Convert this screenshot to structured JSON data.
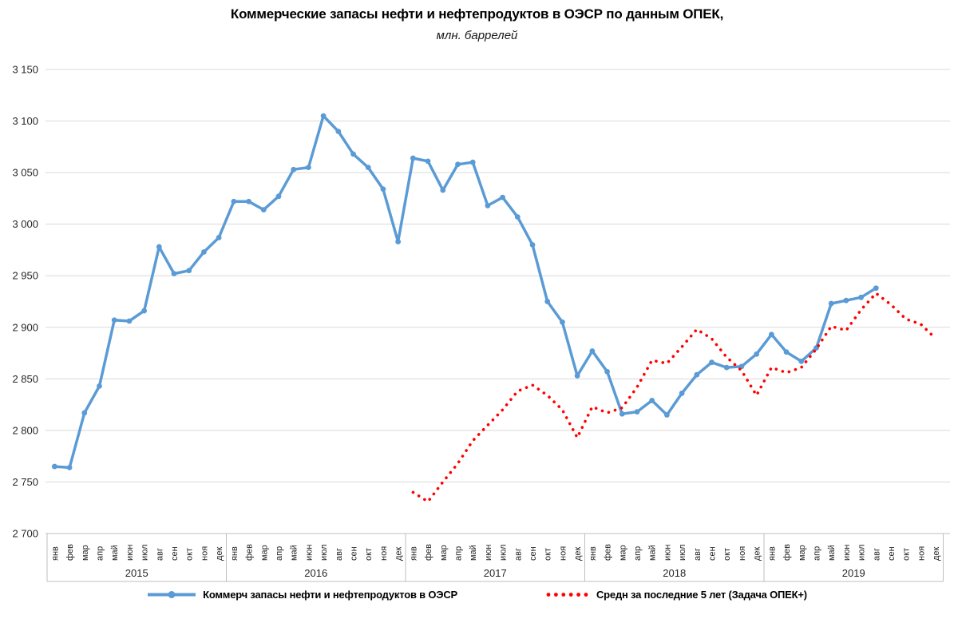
{
  "title": "Коммерческие запасы нефти и нефтепродуктов в ОЭСР по данным ОПЕК,",
  "subtitle": "млн. баррелей",
  "legend": [
    {
      "label": "Коммерч запасы нефти и нефтепродуктов в ОЭСР",
      "color": "#5B9BD5",
      "style": "line-marker"
    },
    {
      "label": "Средн за последние 5 лет (Задача ОПЕК+)",
      "color": "#FF0000",
      "style": "dotted"
    }
  ],
  "colors": {
    "series_blue": "#5B9BD5",
    "series_red": "#FF0000",
    "gridline": "#D9D9D9",
    "axis_line": "#BFBFBF",
    "axis_text": "#262626",
    "background": "#FFFFFF"
  },
  "chart_data": {
    "type": "line",
    "title": "Коммерческие запасы нефти и нефтепродуктов в ОЭСР по данным ОПЕК,",
    "subtitle": "млн. баррелей",
    "units": "млн. баррелей",
    "grid": "horizontal",
    "legend_position": "bottom",
    "ylim": [
      2700,
      3150
    ],
    "ytick_step": 50,
    "ytick_labels": [
      "2 700",
      "2 750",
      "2 800",
      "2 850",
      "2 900",
      "2 950",
      "3 000",
      "3 050",
      "3 100",
      "3 150"
    ],
    "x_month_labels": [
      "янв",
      "фев",
      "мар",
      "апр",
      "май",
      "июн",
      "июл",
      "авг",
      "сен",
      "окт",
      "ноя",
      "дек"
    ],
    "x_years": [
      "2015",
      "2016",
      "2017",
      "2018",
      "2019"
    ],
    "series": [
      {
        "name": "Коммерч запасы нефти и нефтепродуктов в ОЭСР",
        "color": "#5B9BD5",
        "line_style": "solid",
        "markers": true,
        "start_year": "2015",
        "start_month": "янв",
        "start_index": 0,
        "values": [
          2765,
          2764,
          2817,
          2843,
          2907,
          2906,
          2916,
          2978,
          2952,
          2955,
          2973,
          2987,
          3022,
          3022,
          3014,
          3027,
          3053,
          3055,
          3105,
          3090,
          3068,
          3055,
          3034,
          2983,
          3064,
          3061,
          3033,
          3058,
          3060,
          3018,
          3026,
          3007,
          2980,
          2925,
          2905,
          2853,
          2877,
          2857,
          2816,
          2818,
          2829,
          2815,
          2836,
          2854,
          2866,
          2861,
          2862,
          2874,
          2893,
          2876,
          2867,
          2880,
          2923,
          2926,
          2929,
          2938
        ]
      },
      {
        "name": "Средн за последние 5 лет (Задача ОПЕК+)",
        "color": "#FF0000",
        "line_style": "dotted",
        "markers": false,
        "start_year": "2017",
        "start_month": "янв",
        "start_index": 24,
        "values": [
          2740,
          2731,
          2750,
          2768,
          2790,
          2805,
          2820,
          2838,
          2844,
          2834,
          2820,
          2793,
          2823,
          2817,
          2822,
          2842,
          2868,
          2865,
          2881,
          2898,
          2889,
          2871,
          2858,
          2834,
          2861,
          2856,
          2861,
          2879,
          2901,
          2897,
          2917,
          2933,
          2922,
          2908,
          2903,
          2889
        ]
      }
    ]
  }
}
